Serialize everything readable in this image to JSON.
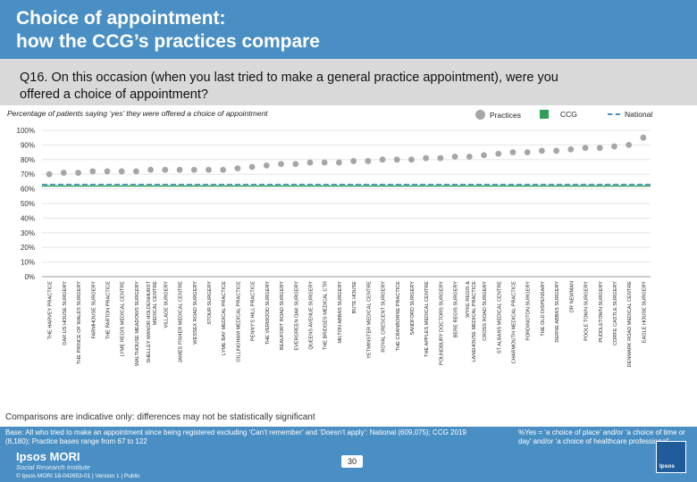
{
  "title": {
    "line1": "Choice of appointment:",
    "line2": "how the CCG’s practices compare"
  },
  "question": {
    "line1": "Q16. On this occasion (when you last tried to make a general practice appointment), were you",
    "line2": "offered a choice of appointment?"
  },
  "caption": "Percentage of patients saying ‘yes’ they were offered a choice of appointment",
  "legend": {
    "practices": "Practices",
    "ccg": "CCG",
    "national": "National"
  },
  "colors": {
    "header": "#4a8fc4",
    "points": "#a6a6a6",
    "ccg": "#2e9e57",
    "national": "#4a8fc4"
  },
  "chart_data": {
    "type": "scatter",
    "title": "Percentage of patients saying ‘yes’ they were offered a choice of appointment",
    "ylim": [
      0,
      100
    ],
    "yticks": [
      0,
      10,
      20,
      30,
      40,
      50,
      60,
      70,
      80,
      90,
      100
    ],
    "ytick_labels": [
      "0%",
      "10%",
      "20%",
      "30%",
      "40%",
      "50%",
      "60%",
      "70%",
      "80%",
      "90%",
      "100%"
    ],
    "ccg_value": 62,
    "national_value": 63,
    "categories": [
      "THE HARVEY PRACTICE",
      "DAR US HOUSE SURGERY",
      "THE PRINCE OF WALES SURGERY",
      "FARMHOUSE SURGERY",
      "THE PARTON PRACTICE",
      "LYME REGIS MEDICAL CENTRE",
      "WALTHOUSE MEADOWS SURGERY",
      "SHELLEY MANOR HOLDENHURST MEDICAL CENTRE",
      "VILLAGE SURGERY",
      "JAMES FISHER MEDICAL CENTRE",
      "WESSEX ROAD SURGERY",
      "STOUR SURGERY",
      "LYME BAY MEDICAL PRACTICE",
      "GILLINGHAM MEDICAL PRACTICE",
      "PENNY'S HILL PRACTICE",
      "THE VERWOOD SURGERY",
      "BEAUFORT ROAD SURGERY",
      "EVERGREEN OAK SURGERY",
      "QUEENS AVENUE SURGERY",
      "THE BRIDGES MEDICAL CTR",
      "MILTON ABBAS SURGERY",
      "BUTE HOUSE",
      "YETMINSTER MEDICAL CENTRE",
      "ROYAL CRESCENT SURGERY",
      "THE CRANBORNE PRACTICE",
      "SANDFORD SURGERY",
      "THE APPLES MEDICAL CENTRE",
      "POUNDBURY DOCTORS SURGERY",
      "BERE REGIS SURGERY",
      "WYKE REGIS & LANEHOUSE MEDICAL PRACTICE",
      "CROSS ROAD SURGERY",
      "ST ALBANS MEDICAL CENTRE",
      "CHARMOUTH MEDICAL PRACTICE",
      "FORDINGTON SURGERY",
      "THE OLD DISPENSARY",
      "DERNE ABBAS SURGERY",
      "DR NEWMAN",
      "POOLE TOWN SURGERY",
      "PUDDLETOWN SURGERY",
      "CORFE CASTLE SURGERY",
      "DENMARK ROAD MEDICAL CENTRE",
      "EAGLE HOUSE SURGERY"
    ],
    "values": [
      70,
      71,
      71,
      72,
      72,
      72,
      72,
      73,
      73,
      73,
      73,
      73,
      73,
      74,
      75,
      76,
      77,
      77,
      78,
      78,
      78,
      79,
      79,
      80,
      80,
      80,
      81,
      81,
      82,
      82,
      83,
      84,
      85,
      85,
      86,
      86,
      87,
      88,
      88,
      89,
      90,
      95
    ]
  },
  "note": "Comparisons are indicative only: differences may not be statistically significant",
  "footer": {
    "base": "Base: All who tried to make an appointment since being registered excluding ‘Can’t remember’ and ‘Doesn’t apply’: National (609,075); CCG 2019 (8,180); Practice bases range from 67 to 122",
    "yes_definition": "%Yes = ‘a choice of place’ and/or ‘a choice of time or day’ and/or ‘a choice of healthcare professional’",
    "logo": "Ipsos MORI",
    "logo_sub": "Social Research Institute",
    "copyright": "© Ipsos MORI     18-042653-01 | Version 1 | Public",
    "page": "30"
  }
}
